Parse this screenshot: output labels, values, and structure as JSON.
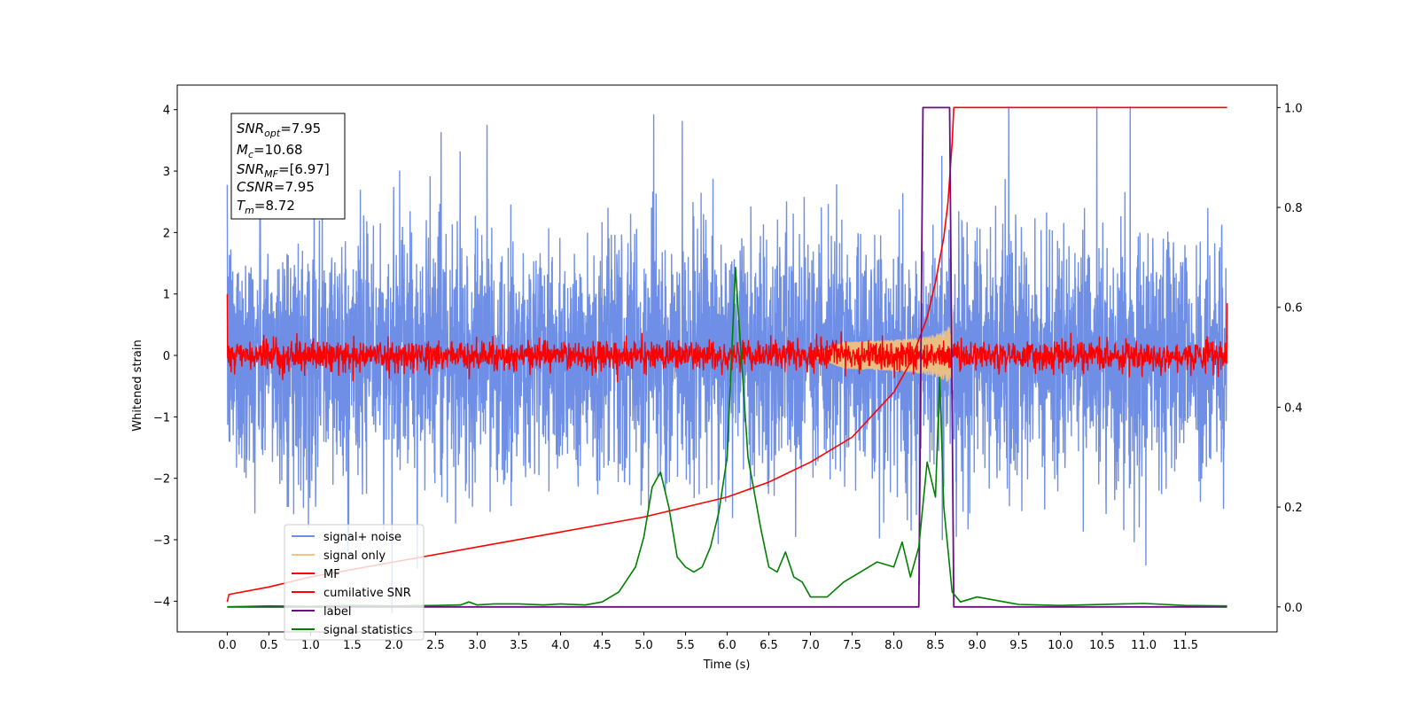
{
  "chart_data": {
    "type": "line",
    "xlabel": "Time (s)",
    "ylabel": "Whitened strain",
    "xlim": [
      -0.6,
      12.6
    ],
    "ylim_left": [
      -4.5,
      4.4
    ],
    "ylim_right": [
      -0.05,
      1.045
    ],
    "x_ticks": [
      "0.0",
      "0.5",
      "1.0",
      "1.5",
      "2.0",
      "2.5",
      "3.0",
      "3.5",
      "4.0",
      "4.5",
      "5.0",
      "5.5",
      "6.0",
      "6.5",
      "7.0",
      "7.5",
      "8.0",
      "8.5",
      "9.0",
      "9.5",
      "10.0",
      "10.5",
      "11.0",
      "11.5"
    ],
    "y_ticks_left": [
      "4",
      "3",
      "2",
      "1",
      "0",
      "−1",
      "−2",
      "−3",
      "−4"
    ],
    "y_ticks_right": [
      "1.0",
      "0.8",
      "0.6",
      "0.4",
      "0.2",
      "0.0"
    ],
    "annotations": {
      "snr_opt": {
        "base": "SNR",
        "sub": "opt",
        "value": "=7.95"
      },
      "mc": {
        "base": "M",
        "sub": "c",
        "value": "=10.68"
      },
      "snr_mf": {
        "base": "SNR",
        "sub": "MF",
        "value": "=[6.97]"
      },
      "csnr": {
        "base": "CSNR",
        "value": "=7.95"
      },
      "tm": {
        "base": "T",
        "sub": "m",
        "value": "=8.72"
      }
    },
    "legend_position": "lower-left",
    "series": [
      {
        "name": "signal+ noise",
        "color": "#6f8fe6",
        "axis": "left",
        "kind": "noise",
        "band_sigma": 1.0,
        "range": [
          0.0,
          12.0
        ]
      },
      {
        "name": "signal only",
        "color": "#f5c37a",
        "axis": "left",
        "kind": "chirp",
        "peak_amplitude": 0.75,
        "t_merge": 8.72
      },
      {
        "name": "MF",
        "color": "#ff0000",
        "axis": "left",
        "kind": "noise",
        "band_sigma": 0.12
      },
      {
        "name": "cumilative SNR",
        "color": "#ff0000",
        "axis": "right",
        "x": [
          0.0,
          0.02,
          0.5,
          1.0,
          2.0,
          3.0,
          4.0,
          5.0,
          5.5,
          6.0,
          6.5,
          7.0,
          7.5,
          8.0,
          8.2,
          8.4,
          8.5,
          8.6,
          8.65,
          8.7,
          8.72,
          9.0,
          12.0
        ],
        "y": [
          0.01,
          0.025,
          0.04,
          0.06,
          0.09,
          0.12,
          0.15,
          0.18,
          0.2,
          0.22,
          0.25,
          0.29,
          0.34,
          0.43,
          0.49,
          0.58,
          0.65,
          0.74,
          0.81,
          0.93,
          1.0,
          1.0,
          1.0
        ]
      },
      {
        "name": "label",
        "color": "#6a0d83",
        "axis": "right",
        "x": [
          0.0,
          8.3,
          8.35,
          8.67,
          8.72,
          12.0
        ],
        "y": [
          0.0,
          0.0,
          1.0,
          1.0,
          0.0,
          0.0
        ]
      },
      {
        "name": "signal statistics",
        "color": "#008000",
        "axis": "right",
        "x": [
          0.0,
          0.5,
          1.0,
          1.5,
          2.0,
          2.5,
          2.8,
          2.9,
          3.0,
          3.2,
          3.5,
          3.8,
          4.0,
          4.3,
          4.5,
          4.7,
          4.9,
          5.0,
          5.1,
          5.2,
          5.3,
          5.4,
          5.5,
          5.6,
          5.7,
          5.8,
          5.9,
          6.0,
          6.1,
          6.15,
          6.25,
          6.4,
          6.5,
          6.6,
          6.7,
          6.8,
          6.9,
          7.0,
          7.2,
          7.4,
          7.6,
          7.8,
          8.0,
          8.1,
          8.2,
          8.3,
          8.4,
          8.5,
          8.55,
          8.6,
          8.7,
          8.8,
          9.0,
          9.5,
          10.0,
          11.0,
          11.5,
          12.0
        ],
        "y": [
          0.0,
          0.002,
          0.001,
          0.003,
          0.002,
          0.003,
          0.004,
          0.01,
          0.004,
          0.006,
          0.006,
          0.004,
          0.006,
          0.004,
          0.01,
          0.03,
          0.08,
          0.14,
          0.24,
          0.27,
          0.2,
          0.1,
          0.08,
          0.07,
          0.08,
          0.12,
          0.19,
          0.3,
          0.68,
          0.55,
          0.3,
          0.16,
          0.08,
          0.07,
          0.11,
          0.06,
          0.05,
          0.02,
          0.02,
          0.05,
          0.07,
          0.09,
          0.08,
          0.13,
          0.06,
          0.12,
          0.29,
          0.22,
          0.46,
          0.2,
          0.03,
          0.01,
          0.02,
          0.005,
          0.003,
          0.007,
          0.003,
          0.002
        ]
      }
    ]
  }
}
